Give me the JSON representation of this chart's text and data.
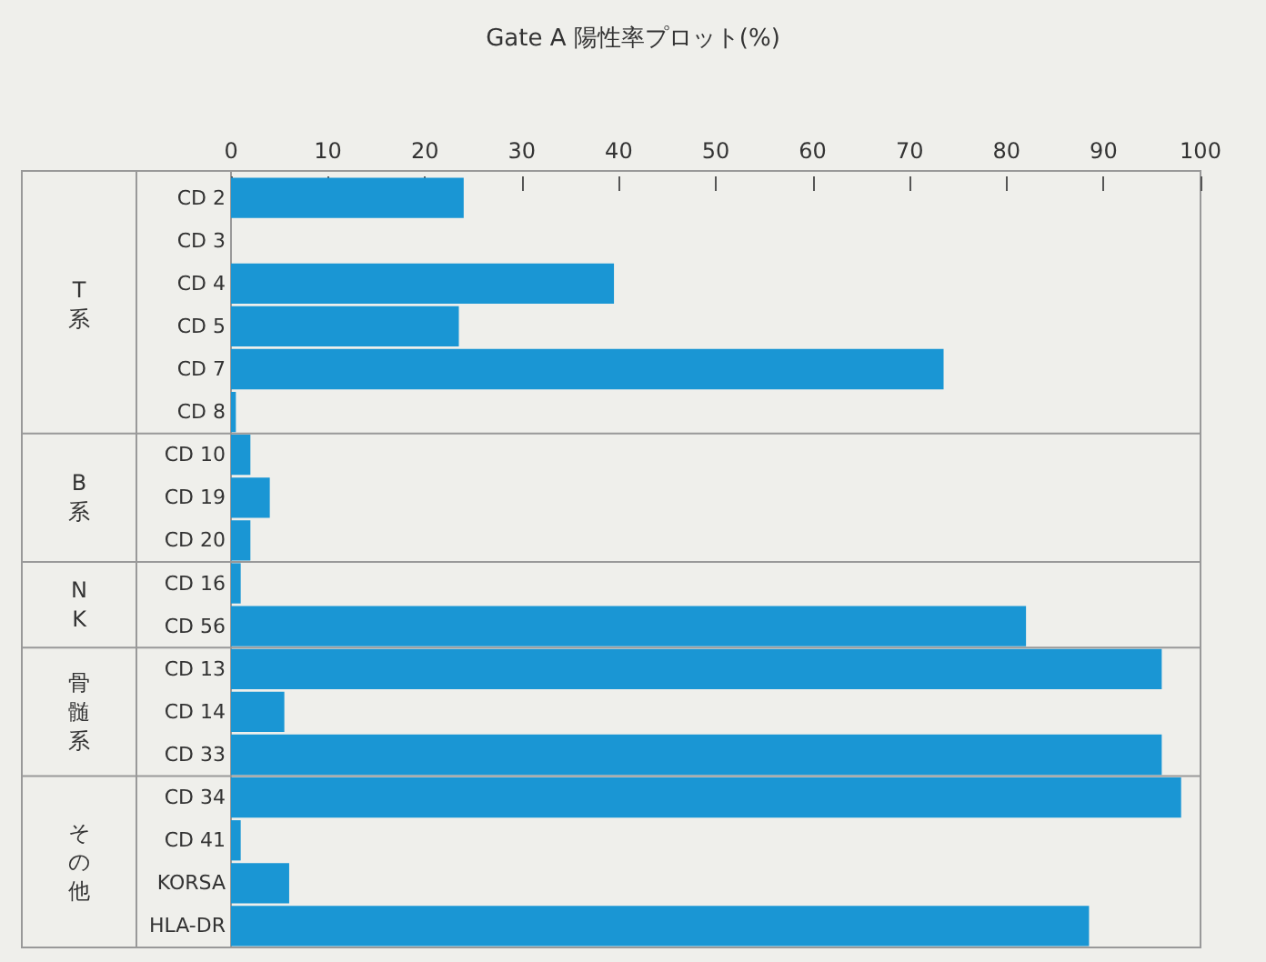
{
  "chart_data": {
    "type": "bar",
    "orientation": "horizontal",
    "title": "Gate A 陽性率プロット(%)",
    "categories": [
      "CD 2",
      "CD 3",
      "CD 4",
      "CD 5",
      "CD 7",
      "CD 8",
      "CD 10",
      "CD 19",
      "CD 20",
      "CD 16",
      "CD 56",
      "CD 13",
      "CD 14",
      "CD 33",
      "CD 34",
      "CD 41",
      "KORSA",
      "HLA-DR"
    ],
    "values": [
      24,
      0,
      39.5,
      23.5,
      73.5,
      0.5,
      2,
      4,
      2,
      1,
      82,
      96,
      5.5,
      96,
      98,
      1,
      6,
      88.5
    ],
    "color": "#1a96d4",
    "xlim": [
      0,
      100
    ],
    "xticks": [
      0,
      10,
      20,
      30,
      40,
      50,
      60,
      70,
      80,
      90,
      100
    ],
    "grid": false,
    "annotations": [
      "T系",
      "B系",
      "NK",
      "骨髄系",
      "その他"
    ]
  }
}
